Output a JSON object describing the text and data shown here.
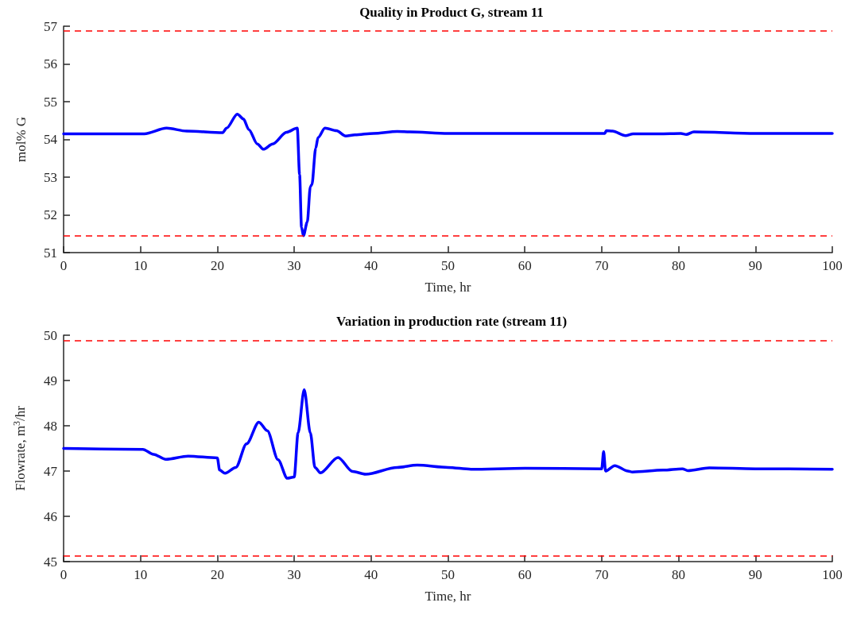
{
  "chart_data": [
    {
      "type": "line",
      "title": "Quality in Product G, stream 11",
      "xlabel": "Time, hr",
      "ylabel": "mol% G",
      "xlim": [
        0,
        100
      ],
      "xticks": [
        0,
        10,
        20,
        30,
        40,
        50,
        60,
        70,
        80,
        90,
        100
      ],
      "ylim": [
        51,
        57
      ],
      "yticks": [
        51,
        52,
        53,
        54,
        55,
        56,
        57
      ],
      "grid": false,
      "marker": "none",
      "line_style": "solid",
      "series": [
        {
          "color": "#0000ff",
          "x": [
            0,
            10.5,
            13.4,
            16,
            20.7,
            21.2,
            22.6,
            23.4,
            24.1,
            25.2,
            26.0,
            27.2,
            29.0,
            30.4,
            30.7,
            30.95,
            31.2,
            31.7,
            32.1,
            32.3,
            32.8,
            33.1,
            34.0,
            35.5,
            36.7,
            37.9,
            40.3,
            43.4,
            45,
            50,
            60,
            70.4,
            70.6,
            71.4,
            73.1,
            74.1,
            77.5,
            80.3,
            81.0,
            82.0,
            90,
            100
          ],
          "values": [
            54.15,
            54.15,
            54.3,
            54.22,
            54.18,
            54.3,
            54.67,
            54.54,
            54.26,
            53.88,
            53.74,
            53.88,
            54.19,
            54.3,
            53.07,
            51.67,
            51.45,
            51.81,
            52.75,
            52.8,
            53.77,
            54.05,
            54.3,
            54.23,
            54.09,
            54.12,
            54.16,
            54.21,
            54.2,
            54.16,
            54.16,
            54.16,
            54.23,
            54.22,
            54.1,
            54.15,
            54.15,
            54.16,
            54.13,
            54.2,
            54.16,
            54.16
          ]
        }
      ],
      "ref_lines": [
        {
          "axis": "y",
          "value": 56.87,
          "color": "#ff0000",
          "line_style": "dashed"
        },
        {
          "axis": "y",
          "value": 51.45,
          "color": "#ff0000",
          "line_style": "dashed"
        }
      ]
    },
    {
      "type": "line",
      "title": "Variation in production rate (stream 11)",
      "xlabel": "Time, hr",
      "ylabel": "Flowrate, m$^{3}$/hr",
      "xlim": [
        0,
        100
      ],
      "xticks": [
        0,
        10,
        20,
        30,
        40,
        50,
        60,
        70,
        80,
        90,
        100
      ],
      "ylim": [
        45,
        50
      ],
      "yticks": [
        45,
        46,
        47,
        48,
        49,
        50
      ],
      "grid": false,
      "marker": "none",
      "line_style": "solid",
      "series": [
        {
          "color": "#0000ff",
          "x": [
            0,
            10.3,
            11.7,
            13.3,
            16.2,
            20.0,
            20.3,
            21.0,
            22.4,
            23.8,
            25.4,
            26.5,
            27.9,
            29.1,
            30.0,
            30.5,
            31.3,
            32.1,
            32.7,
            33.4,
            35.7,
            37.6,
            39.3,
            43.4,
            46,
            50,
            53,
            60,
            70,
            70.25,
            70.5,
            71.7,
            73.4,
            74,
            78,
            80.5,
            81.2,
            84,
            90,
            100
          ],
          "values": [
            47.5,
            47.48,
            47.37,
            47.26,
            47.33,
            47.29,
            47.02,
            46.95,
            47.08,
            47.6,
            48.08,
            47.89,
            47.25,
            46.84,
            46.87,
            47.84,
            48.8,
            47.84,
            47.08,
            46.96,
            47.3,
            46.99,
            46.93,
            47.08,
            47.13,
            47.08,
            47.04,
            47.06,
            47.05,
            47.43,
            47.0,
            47.12,
            47.0,
            46.98,
            47.02,
            47.05,
            47.01,
            47.07,
            47.05,
            47.04
          ]
        }
      ],
      "ref_lines": [
        {
          "axis": "y",
          "value": 49.88,
          "color": "#ff0000",
          "line_style": "dashed"
        },
        {
          "axis": "y",
          "value": 45.13,
          "color": "#ff0000",
          "line_style": "dashed"
        }
      ]
    }
  ]
}
